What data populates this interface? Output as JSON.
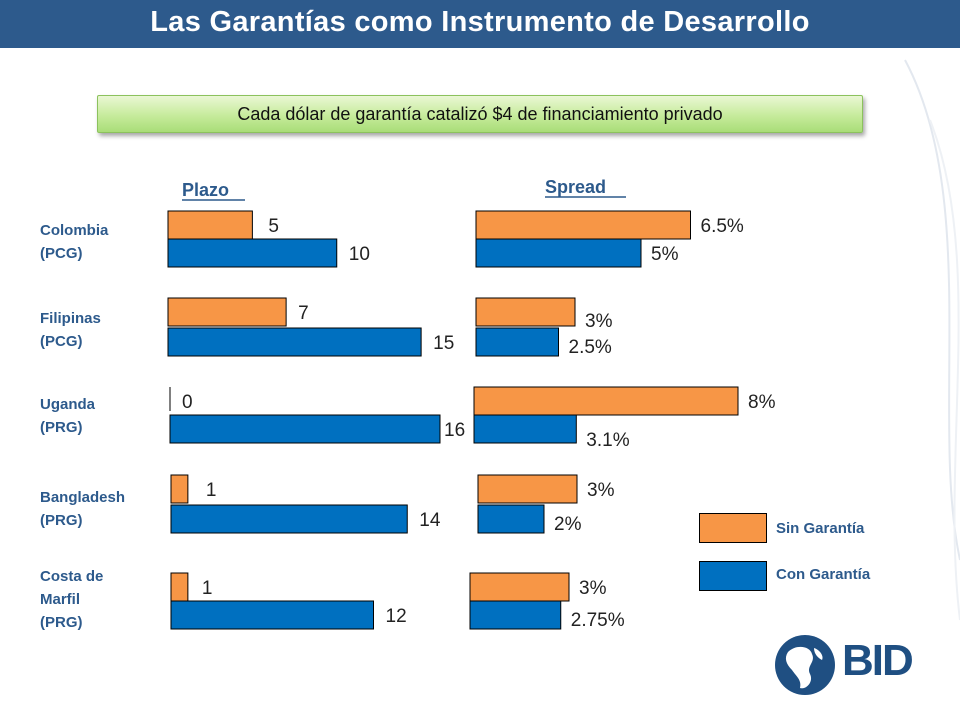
{
  "title": "Las Garantías como Instrumento de Desarrollo",
  "banner": "Cada dólar de garantía catalizó $4 de financiamiento privado",
  "colors": {
    "sin_garantia": "#f79646",
    "con_garantia": "#0070c0",
    "title_bar": "#2d5a8c",
    "label_text": "#2d5a8c"
  },
  "legend": {
    "sin_label": "Sin Garantía",
    "con_label": "Con Garantía"
  },
  "logo": {
    "text": "BID",
    "icon": "bid-globe-icon"
  },
  "chart_data": [
    {
      "type": "bar",
      "orientation": "horizontal",
      "title": "Plazo",
      "categories": [
        "Colombia (PCG)",
        "Filipinas (PCG)",
        "Uganda (PRG)",
        "Bangladesh (PRG)",
        "Costa de Marfil (PRG)"
      ],
      "series": [
        {
          "name": "Sin Garantía",
          "values": [
            5,
            7,
            0,
            1,
            1
          ],
          "labels": [
            "5",
            "7",
            "0",
            "1",
            "1"
          ]
        },
        {
          "name": "Con Garantía",
          "values": [
            10,
            15,
            16,
            14,
            12
          ],
          "labels": [
            "10",
            "15",
            "16",
            "14",
            "12"
          ]
        }
      ]
    },
    {
      "type": "bar",
      "orientation": "horizontal",
      "title": "Spread",
      "categories": [
        "Colombia (PCG)",
        "Filipinas (PCG)",
        "Uganda (PRG)",
        "Bangladesh (PRG)",
        "Costa de Marfil (PRG)"
      ],
      "series": [
        {
          "name": "Sin Garantía",
          "values": [
            6.5,
            3,
            8,
            3,
            3
          ],
          "labels": [
            "6.5%",
            "3%",
            "8%",
            "3%",
            "3%"
          ]
        },
        {
          "name": "Con Garantía",
          "values": [
            5,
            2.5,
            3.1,
            2,
            2.75
          ],
          "labels": [
            "5%",
            "2.5%",
            "3.1%",
            "2%",
            "2.75%"
          ]
        }
      ]
    }
  ],
  "countries": [
    {
      "lines": [
        "Colombia",
        "(PCG)"
      ]
    },
    {
      "lines": [
        "Filipinas",
        "(PCG)"
      ]
    },
    {
      "lines": [
        "Uganda",
        "(PRG)"
      ]
    },
    {
      "lines": [
        "Bangladesh",
        "(PRG)"
      ]
    },
    {
      "lines": [
        "Costa de",
        "Marfil",
        "(PRG)"
      ]
    }
  ]
}
